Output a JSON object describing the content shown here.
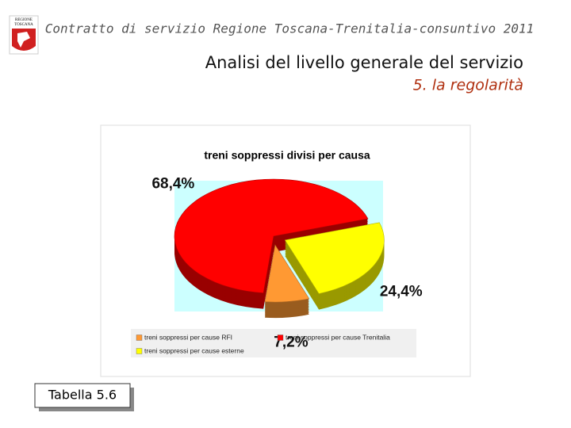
{
  "header": {
    "title": "Contratto di servizio Regione Toscana-Trenitalia-consuntivo 2011",
    "logo_text": [
      "REGIONE",
      "TOSCANA"
    ]
  },
  "slide": {
    "title": "Analisi del livello generale del servizio",
    "subtitle": "5. la regolarità"
  },
  "chart_data": {
    "type": "pie",
    "title": "treni soppressi divisi per causa",
    "categories": [
      "treni soppressi per cause RFI",
      "treni soppressi per cause Trenitalia",
      "treni soppressi per cause esterne"
    ],
    "values": [
      7.2,
      68.4,
      24.4
    ],
    "value_labels": [
      "7,2%",
      "68,4%",
      "24,4%"
    ],
    "colors": [
      "#ff9933",
      "#ff0000",
      "#ffff00"
    ]
  },
  "caption": "Tabella 5.6"
}
